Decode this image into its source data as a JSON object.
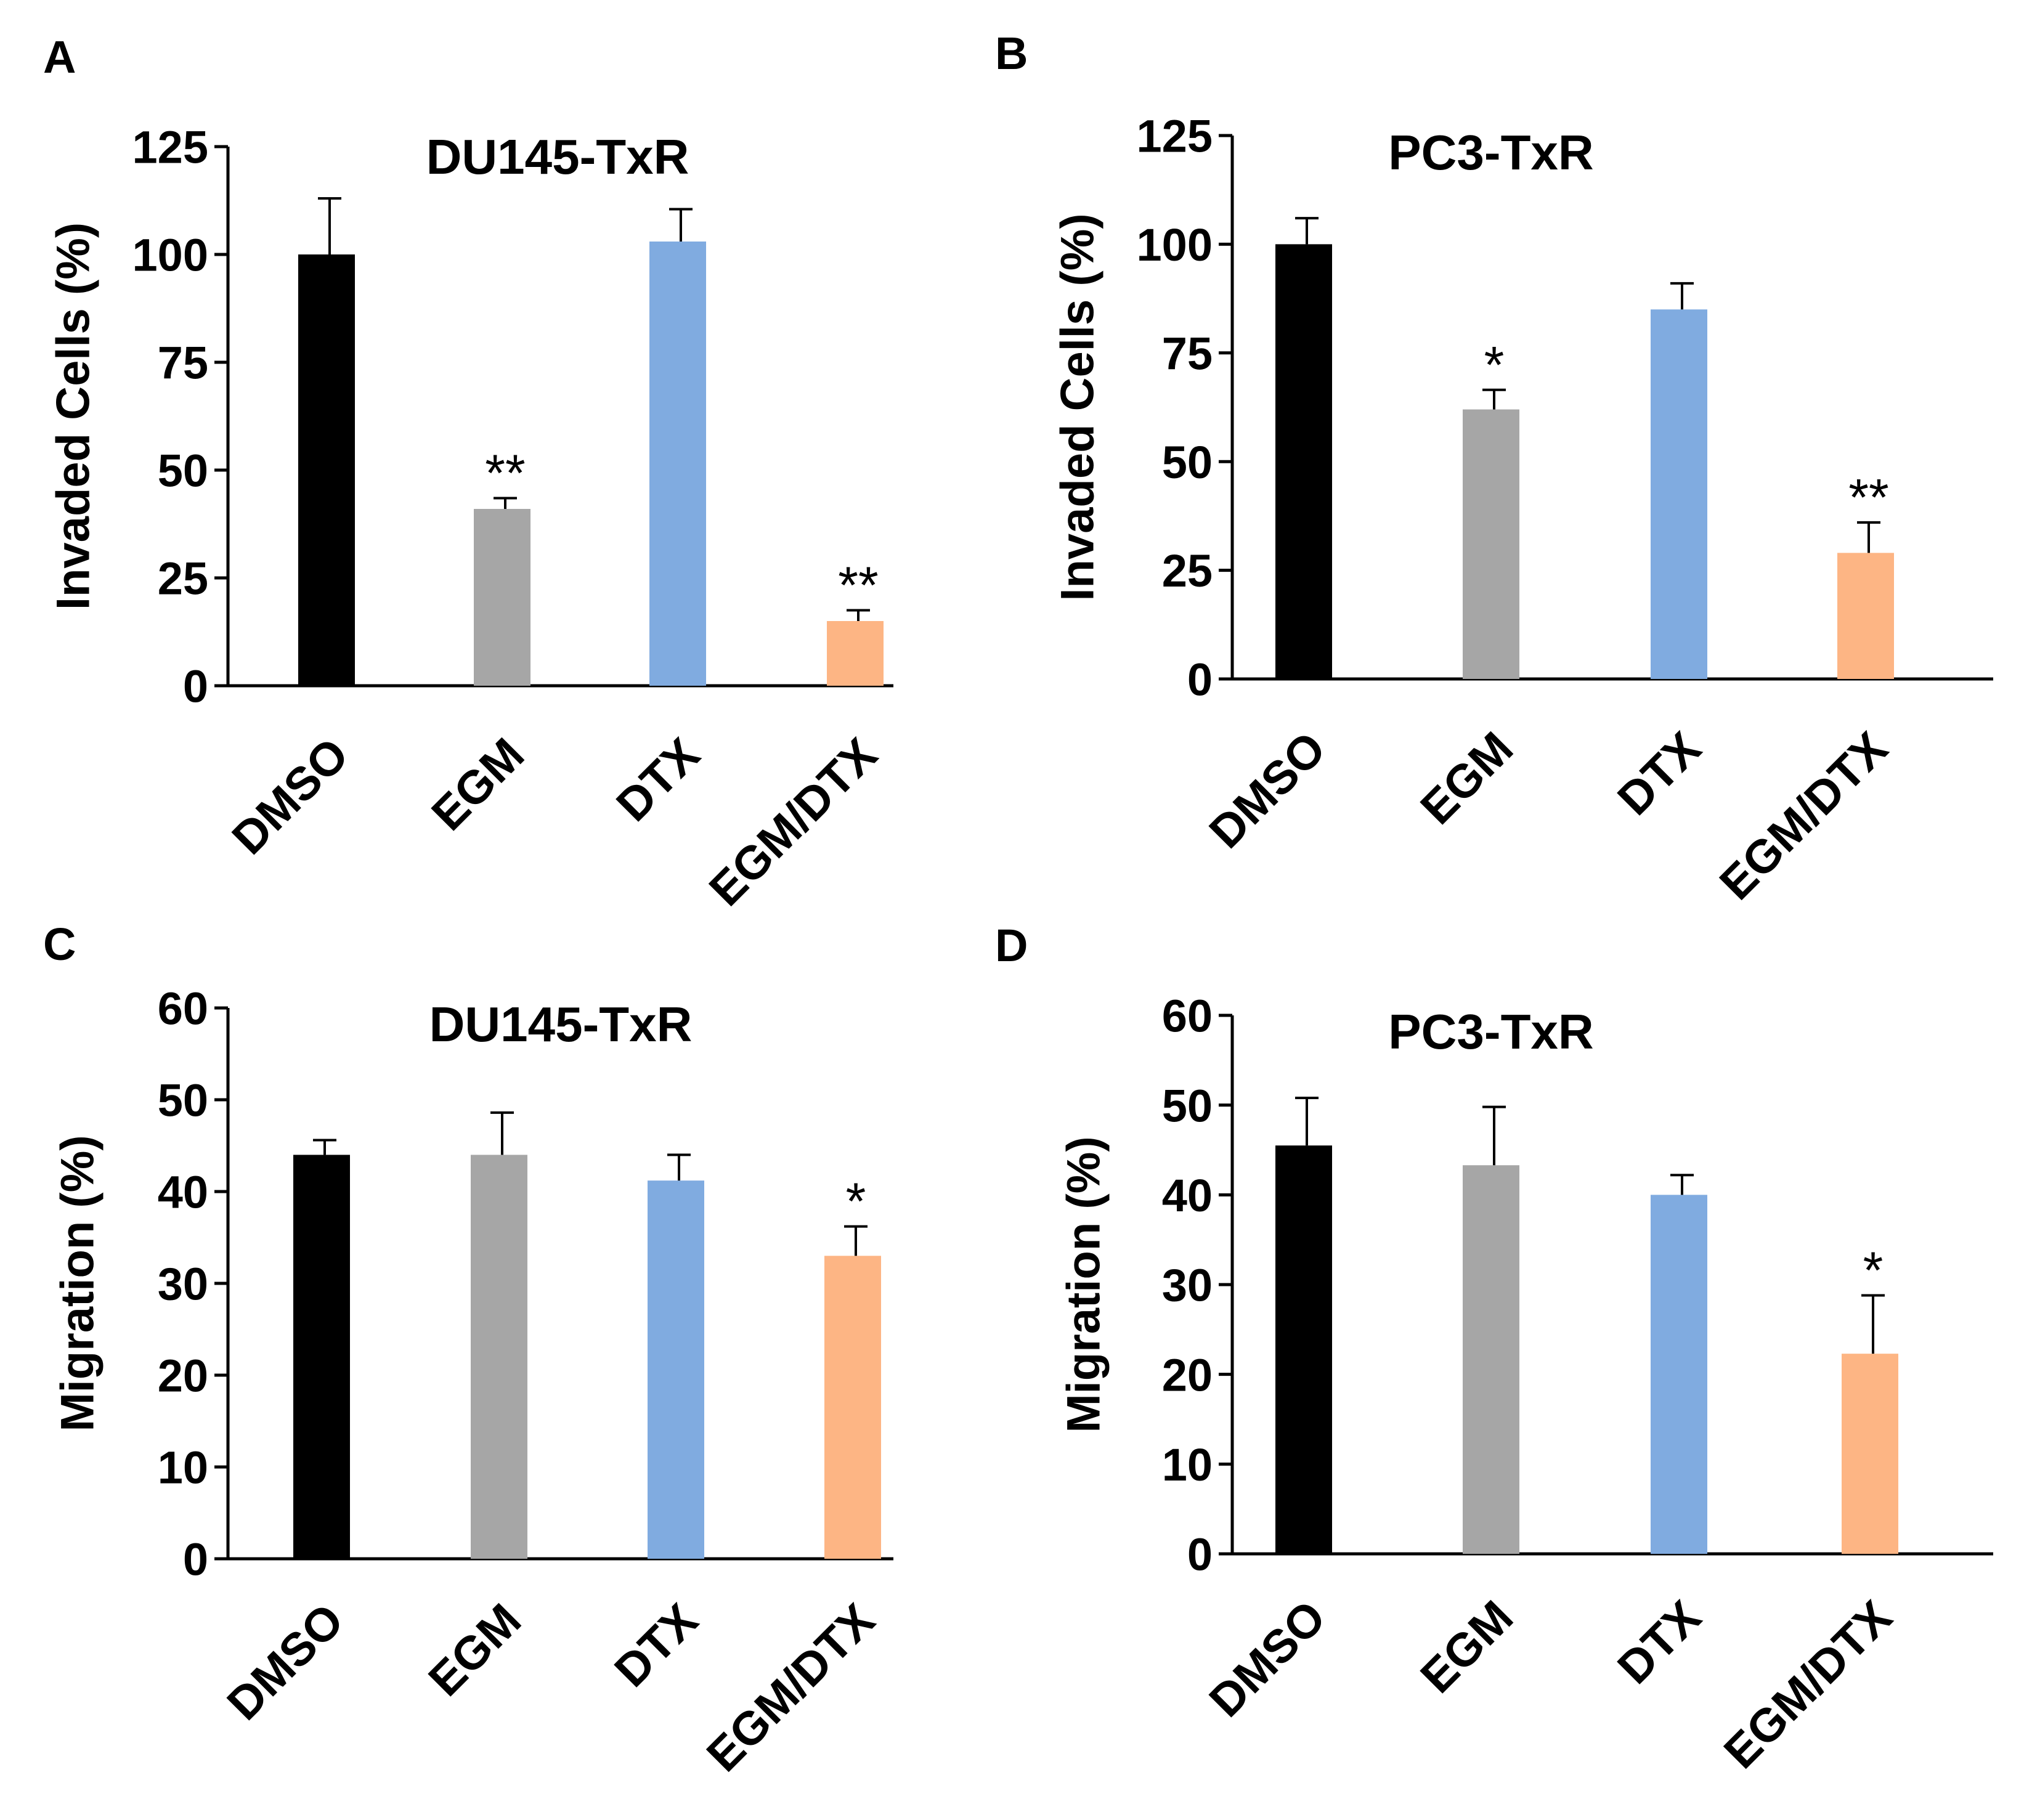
{
  "colors": {
    "DMSO": "#000000",
    "EGM": "#a6a6a6",
    "DTX": "#80abe0",
    "EGM/DTX": "#fdb584",
    "axis": "#000000"
  },
  "chart_data": [
    {
      "panel": "A",
      "type": "bar",
      "title": "DU145-TxR",
      "xlabel": "",
      "ylabel": "Invaded Cells (%)",
      "ylim": [
        0,
        125
      ],
      "yticks": [
        0,
        25,
        50,
        75,
        100,
        125
      ],
      "categories": [
        "DMSO",
        "EGM",
        "DTX",
        "EGM/DTX"
      ],
      "values": [
        100,
        41,
        103,
        15
      ],
      "errors": [
        13,
        2.5,
        7.5,
        2.5
      ],
      "significance": [
        "",
        "**",
        "",
        "**"
      ]
    },
    {
      "panel": "B",
      "type": "bar",
      "title": "PC3-TxR",
      "xlabel": "",
      "ylabel": "Invaded Cells (%)",
      "ylim": [
        0,
        125
      ],
      "yticks": [
        0,
        25,
        50,
        75,
        100,
        125
      ],
      "categories": [
        "DMSO",
        "EGM",
        "DTX",
        "EGM/DTX"
      ],
      "values": [
        100,
        62,
        85,
        29
      ],
      "errors": [
        6,
        4.5,
        6,
        7
      ],
      "significance": [
        "",
        "*",
        "",
        "**"
      ]
    },
    {
      "panel": "C",
      "type": "bar",
      "title": "DU145-TxR",
      "xlabel": "",
      "ylabel": "Migration (%)",
      "ylim": [
        0,
        60
      ],
      "yticks": [
        0,
        10,
        20,
        30,
        40,
        50,
        60
      ],
      "categories": [
        "DMSO",
        "EGM",
        "DTX",
        "EGM/DTX"
      ],
      "values": [
        44,
        44,
        41.2,
        33
      ],
      "errors": [
        1.6,
        4.6,
        2.8,
        3.2
      ],
      "significance": [
        "",
        "",
        "",
        "*"
      ]
    },
    {
      "panel": "D",
      "type": "bar",
      "title": "PC3-TxR",
      "xlabel": "",
      "ylabel": "Migration (%)",
      "ylim": [
        0,
        60
      ],
      "yticks": [
        0,
        10,
        20,
        30,
        40,
        50,
        60
      ],
      "categories": [
        "DMSO",
        "EGM",
        "DTX",
        "EGM/DTX"
      ],
      "values": [
        45.5,
        43.3,
        40,
        22.3
      ],
      "errors": [
        5.3,
        6.5,
        2.2,
        6.5
      ],
      "significance": [
        "",
        "",
        "",
        "*"
      ]
    }
  ]
}
